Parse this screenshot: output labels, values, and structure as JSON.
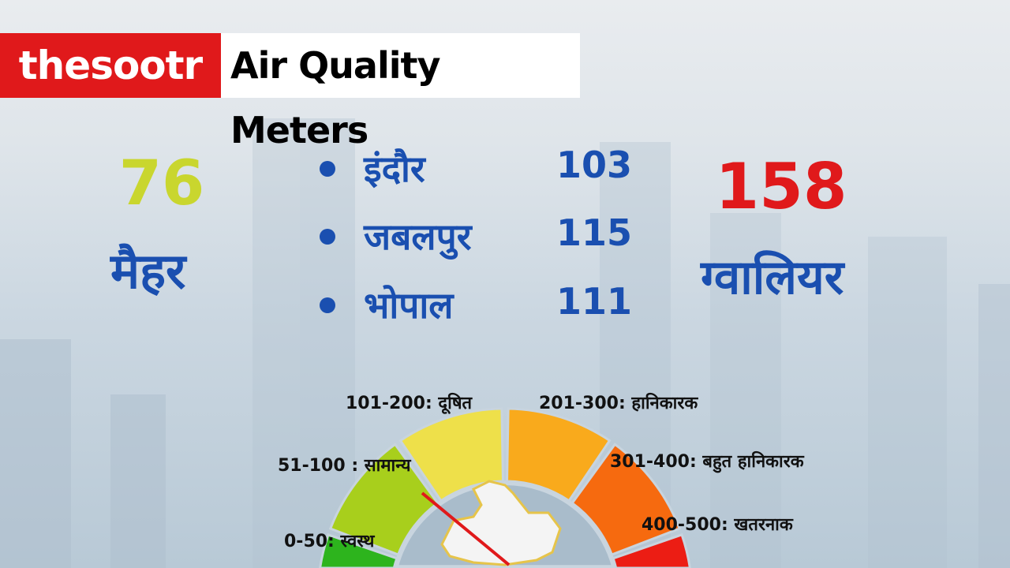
{
  "header": {
    "brand": "thesootr",
    "title": "Air Quality Meters",
    "brand_color": "#e0191b"
  },
  "left_city": {
    "value": "76",
    "name": "मैहर",
    "value_color": "#c9d62e"
  },
  "right_city": {
    "value": "158",
    "name": "ग्वालियर",
    "value_color": "#e0191b"
  },
  "city_list": [
    {
      "name": "इंदौर",
      "value": "103"
    },
    {
      "name": "जबलपुर",
      "value": "115"
    },
    {
      "name": "भोपाल",
      "value": "111"
    }
  ],
  "gauge": {
    "segments": [
      {
        "label": "0-50: स्वस्थ",
        "color": "#2db41d"
      },
      {
        "label": "51-100 : सामान्य",
        "color": "#a8cf1c"
      },
      {
        "label": "101-200:  दूषित",
        "color": "#eee04a"
      },
      {
        "label": "201-300: हानिकारक",
        "color": "#f9aa1c"
      },
      {
        "label": "301-400: बहुत हानिकारक",
        "color": "#f66a0f"
      },
      {
        "label": "400-500: खतरनाक",
        "color": "#ec1d14"
      }
    ],
    "needle_color": "#e0191b"
  }
}
